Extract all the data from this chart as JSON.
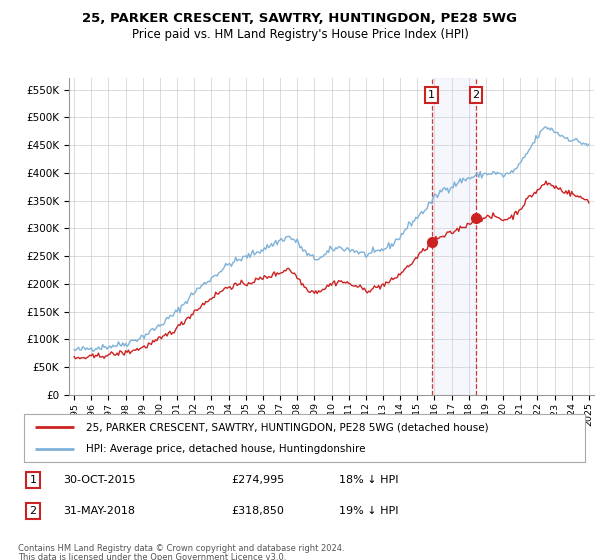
{
  "title": "25, PARKER CRESCENT, SAWTRY, HUNTINGDON, PE28 5WG",
  "subtitle": "Price paid vs. HM Land Registry's House Price Index (HPI)",
  "ylabel_ticks": [
    "£0",
    "£50K",
    "£100K",
    "£150K",
    "£200K",
    "£250K",
    "£300K",
    "£350K",
    "£400K",
    "£450K",
    "£500K",
    "£550K"
  ],
  "ytick_values": [
    0,
    50000,
    100000,
    150000,
    200000,
    250000,
    300000,
    350000,
    400000,
    450000,
    500000,
    550000
  ],
  "xlim": [
    1994.7,
    2025.3
  ],
  "ylim": [
    0,
    570000
  ],
  "hpi_color": "#7fb2d8",
  "price_color": "#cc2222",
  "purchase1_date": 2015.83,
  "purchase1_price": 274995,
  "purchase2_date": 2018.42,
  "purchase2_price": 318850,
  "legend_line1": "25, PARKER CRESCENT, SAWTRY, HUNTINGDON, PE28 5WG (detached house)",
  "legend_line2": "HPI: Average price, detached house, Huntingdonshire",
  "table_row1": [
    "1",
    "30-OCT-2015",
    "£274,995",
    "18% ↓ HPI"
  ],
  "table_row2": [
    "2",
    "31-MAY-2018",
    "£318,850",
    "19% ↓ HPI"
  ],
  "footer1": "Contains HM Land Registry data © Crown copyright and database right 2024.",
  "footer2": "This data is licensed under the Open Government Licence v3.0.",
  "bg_color": "#ffffff",
  "grid_color": "#cccccc"
}
